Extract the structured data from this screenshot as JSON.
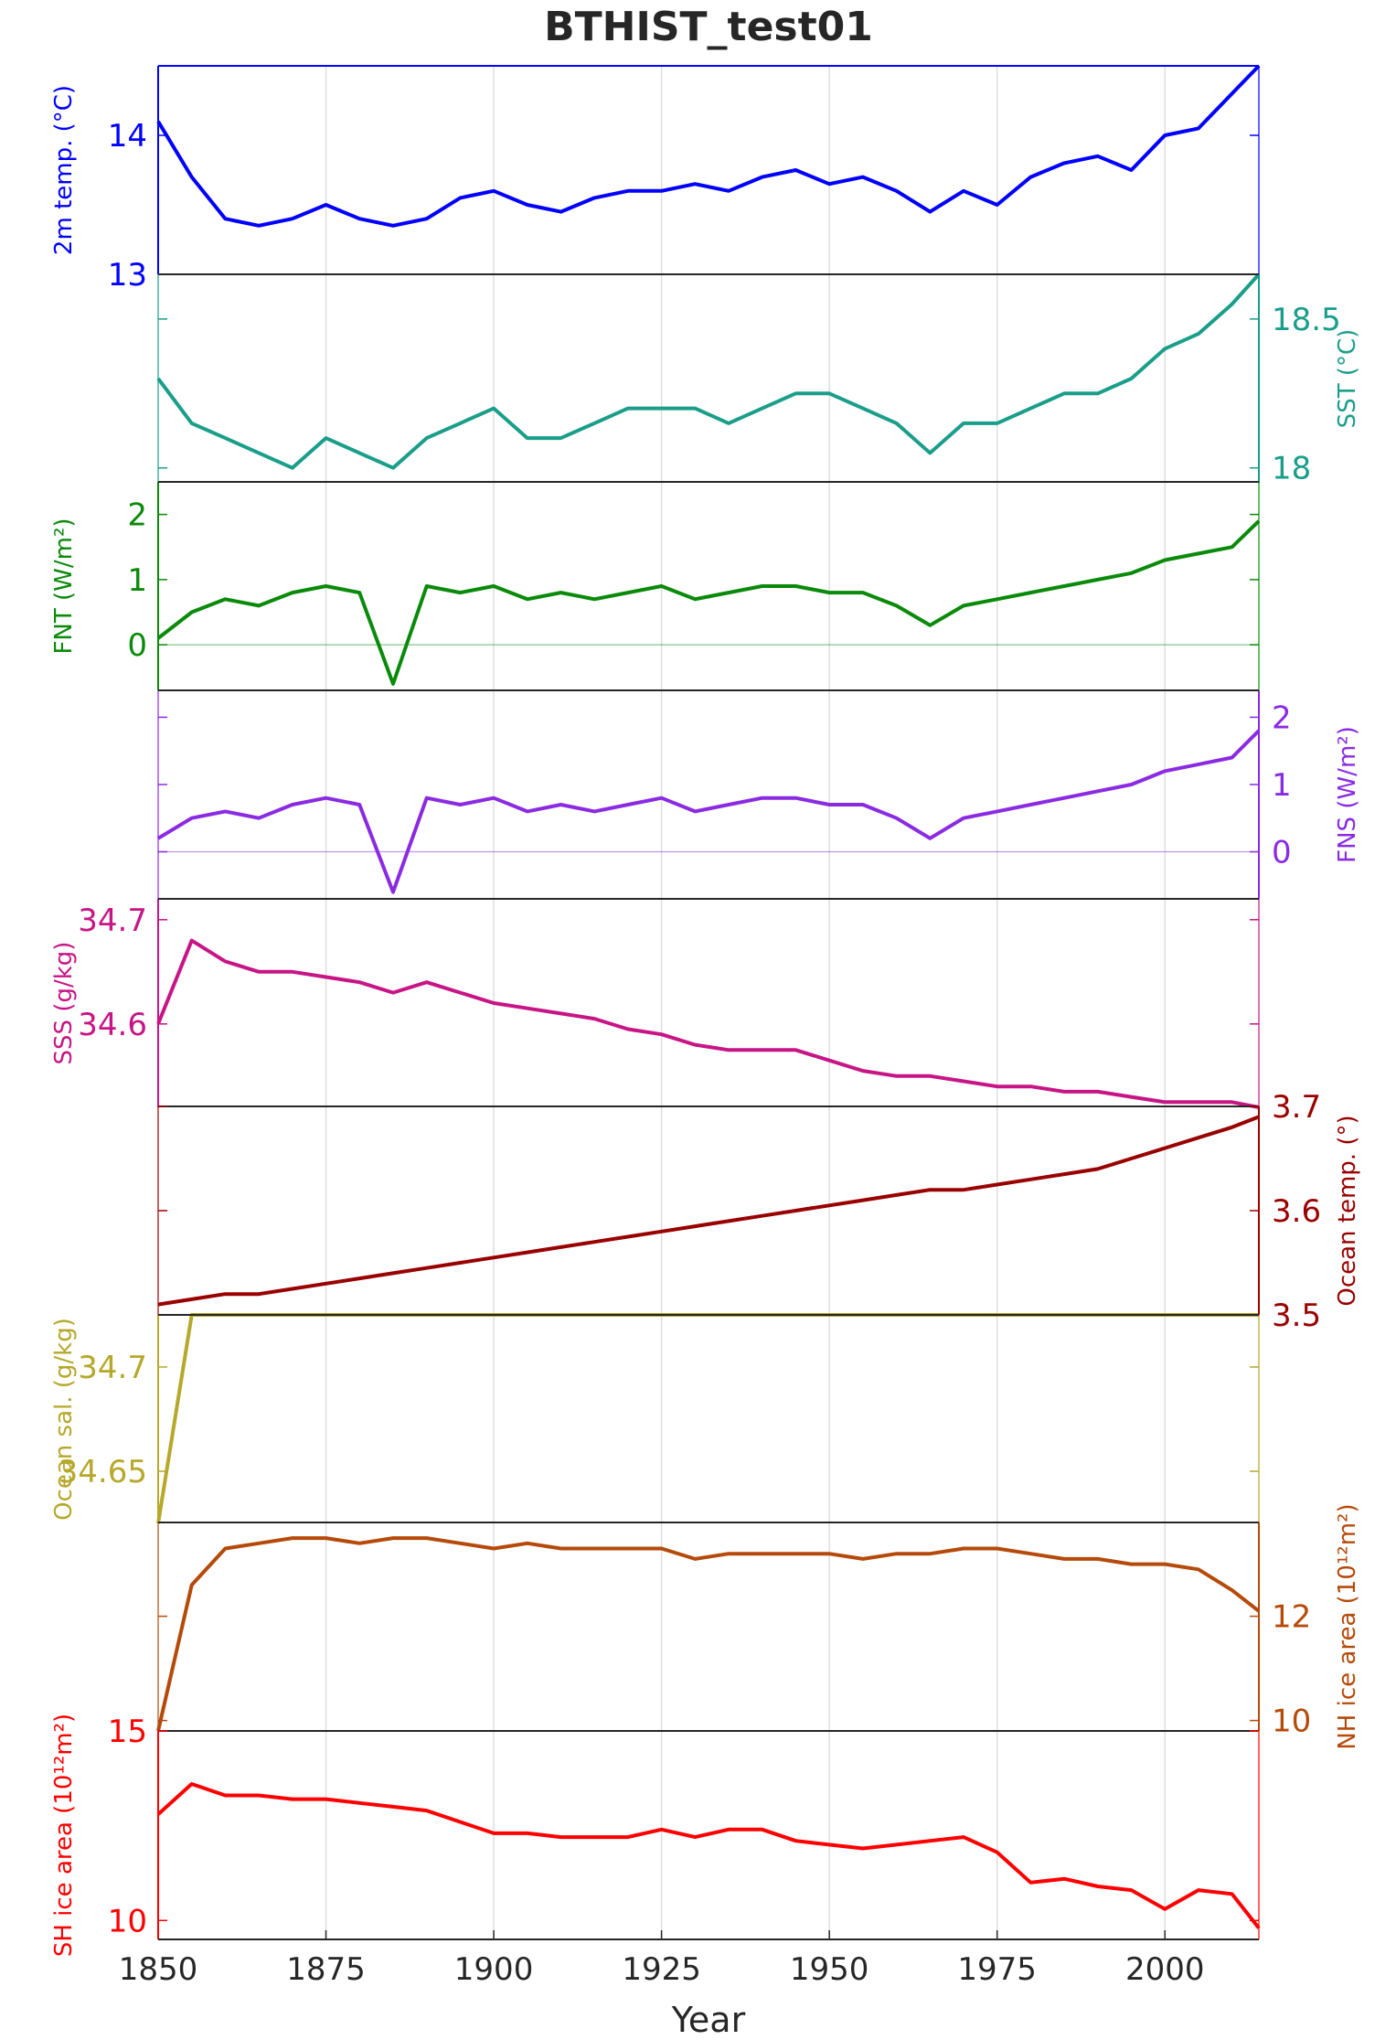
{
  "chart_data": {
    "type": "line",
    "title": "BTHIST_test01",
    "xlabel": "Year",
    "x": [
      1850,
      1855,
      1860,
      1865,
      1870,
      1875,
      1880,
      1885,
      1890,
      1895,
      1900,
      1905,
      1910,
      1915,
      1920,
      1925,
      1930,
      1935,
      1940,
      1945,
      1950,
      1955,
      1960,
      1965,
      1970,
      1975,
      1980,
      1985,
      1990,
      1995,
      2000,
      2005,
      2010,
      2014
    ],
    "xlim": [
      1850,
      2014
    ],
    "xticks": [
      1850,
      1875,
      1900,
      1925,
      1950,
      1975,
      2000
    ],
    "xtick_labels": [
      "1850",
      "1875",
      "1900",
      "1925",
      "1950",
      "1975",
      "2000"
    ],
    "grid": true,
    "panels": [
      {
        "name": "2m temp. (°C)",
        "color": "#0000ff",
        "axis_side": "left",
        "ylim": [
          13.0,
          14.5
        ],
        "yticks": [
          13,
          14
        ],
        "ytick_labels": [
          "13",
          "14"
        ],
        "values": [
          14.1,
          13.7,
          13.4,
          13.35,
          13.4,
          13.5,
          13.4,
          13.35,
          13.4,
          13.55,
          13.6,
          13.5,
          13.45,
          13.55,
          13.6,
          13.6,
          13.65,
          13.6,
          13.7,
          13.75,
          13.65,
          13.7,
          13.6,
          13.45,
          13.6,
          13.5,
          13.7,
          13.8,
          13.85,
          13.75,
          14.0,
          14.05,
          14.3,
          14.5
        ]
      },
      {
        "name": "SST (°C)",
        "color": "#1a9e8a",
        "axis_side": "right",
        "ylim": [
          17.95,
          18.65
        ],
        "yticks": [
          18,
          18.5
        ],
        "ytick_labels": [
          "18",
          "18.5"
        ],
        "values": [
          18.3,
          18.15,
          18.1,
          18.05,
          18.0,
          18.1,
          18.05,
          18.0,
          18.1,
          18.15,
          18.2,
          18.1,
          18.1,
          18.15,
          18.2,
          18.2,
          18.2,
          18.15,
          18.2,
          18.25,
          18.25,
          18.2,
          18.15,
          18.05,
          18.15,
          18.15,
          18.2,
          18.25,
          18.25,
          18.3,
          18.4,
          18.45,
          18.55,
          18.65
        ]
      },
      {
        "name": "FNT (W/m²)",
        "color": "#0a8a0a",
        "axis_side": "left",
        "ylim": [
          -0.7,
          2.5
        ],
        "yticks": [
          0,
          1,
          2
        ],
        "ytick_labels": [
          "0",
          "1",
          "2"
        ],
        "zero_line": true,
        "values": [
          0.1,
          0.5,
          0.7,
          0.6,
          0.8,
          0.9,
          0.8,
          -0.6,
          0.9,
          0.8,
          0.9,
          0.7,
          0.8,
          0.7,
          0.8,
          0.9,
          0.7,
          0.8,
          0.9,
          0.9,
          0.8,
          0.8,
          0.6,
          0.3,
          0.6,
          0.7,
          0.8,
          0.9,
          1.0,
          1.1,
          1.3,
          1.4,
          1.5,
          1.9
        ]
      },
      {
        "name": "FNS (W/m²)",
        "color": "#8a2be2",
        "axis_side": "right",
        "ylim": [
          -0.7,
          2.4
        ],
        "yticks": [
          0,
          1,
          2
        ],
        "ytick_labels": [
          "0",
          "1",
          "2"
        ],
        "zero_line": true,
        "values": [
          0.2,
          0.5,
          0.6,
          0.5,
          0.7,
          0.8,
          0.7,
          -0.6,
          0.8,
          0.7,
          0.8,
          0.6,
          0.7,
          0.6,
          0.7,
          0.8,
          0.6,
          0.7,
          0.8,
          0.8,
          0.7,
          0.7,
          0.5,
          0.2,
          0.5,
          0.6,
          0.7,
          0.8,
          0.9,
          1.0,
          1.2,
          1.3,
          1.4,
          1.8
        ]
      },
      {
        "name": "SSS (g/kg)",
        "color": "#c71585",
        "axis_side": "left",
        "ylim": [
          34.52,
          34.72
        ],
        "yticks": [
          34.6,
          34.7
        ],
        "ytick_labels": [
          "34.6",
          "34.7"
        ],
        "values": [
          34.6,
          34.68,
          34.66,
          34.65,
          34.65,
          34.645,
          34.64,
          34.63,
          34.64,
          34.63,
          34.62,
          34.615,
          34.61,
          34.605,
          34.595,
          34.59,
          34.58,
          34.575,
          34.575,
          34.575,
          34.565,
          34.555,
          34.55,
          34.55,
          34.545,
          34.54,
          34.54,
          34.535,
          34.535,
          34.53,
          34.525,
          34.525,
          34.525,
          34.52
        ]
      },
      {
        "name": "Ocean temp. (°)",
        "color": "#990000",
        "axis_side": "right",
        "ylim": [
          3.5,
          3.7
        ],
        "yticks": [
          3.5,
          3.6,
          3.7
        ],
        "ytick_labels": [
          "3.5",
          "3.6",
          "3.7"
        ],
        "values": [
          3.51,
          3.515,
          3.52,
          3.52,
          3.525,
          3.53,
          3.535,
          3.54,
          3.545,
          3.55,
          3.555,
          3.56,
          3.565,
          3.57,
          3.575,
          3.58,
          3.585,
          3.59,
          3.595,
          3.6,
          3.605,
          3.61,
          3.615,
          3.62,
          3.62,
          3.625,
          3.63,
          3.635,
          3.64,
          3.65,
          3.66,
          3.67,
          3.68,
          3.69
        ]
      },
      {
        "name": "Ocean sal. (g/kg)",
        "color": "#b5a82a",
        "axis_side": "left",
        "ylim": [
          34.625,
          34.725
        ],
        "yticks": [
          34.65,
          34.7
        ],
        "ytick_labels": [
          "34.65",
          "34.7"
        ],
        "values": [
          34.625,
          34.725,
          34.725,
          34.725,
          34.725,
          34.725,
          34.725,
          34.725,
          34.725,
          34.725,
          34.725,
          34.725,
          34.725,
          34.725,
          34.725,
          34.725,
          34.725,
          34.725,
          34.725,
          34.725,
          34.725,
          34.725,
          34.725,
          34.725,
          34.725,
          34.725,
          34.725,
          34.725,
          34.725,
          34.725,
          34.725,
          34.725,
          34.725,
          34.725
        ]
      },
      {
        "name": "NH ice area (10¹²m²)",
        "color": "#b54a0a",
        "axis_side": "right",
        "ylim": [
          9.8,
          13.8
        ],
        "yticks": [
          10,
          12
        ],
        "ytick_labels": [
          "10",
          "12"
        ],
        "values": [
          9.8,
          12.6,
          13.3,
          13.4,
          13.5,
          13.5,
          13.4,
          13.5,
          13.5,
          13.4,
          13.3,
          13.4,
          13.3,
          13.3,
          13.3,
          13.3,
          13.1,
          13.2,
          13.2,
          13.2,
          13.2,
          13.1,
          13.2,
          13.2,
          13.3,
          13.3,
          13.2,
          13.1,
          13.1,
          13.0,
          13.0,
          12.9,
          12.5,
          12.1
        ]
      },
      {
        "name": "SH ice area (10¹²m²)",
        "color": "#ff0000",
        "axis_side": "left",
        "ylim": [
          9.5,
          15.0
        ],
        "yticks": [
          10,
          15
        ],
        "ytick_labels": [
          "10",
          "15"
        ],
        "values": [
          12.8,
          13.6,
          13.3,
          13.3,
          13.2,
          13.2,
          13.1,
          13.0,
          12.9,
          12.6,
          12.3,
          12.3,
          12.2,
          12.2,
          12.2,
          12.4,
          12.2,
          12.4,
          12.4,
          12.1,
          12.0,
          11.9,
          12.0,
          12.1,
          12.2,
          11.8,
          11.0,
          11.1,
          10.9,
          10.8,
          10.3,
          10.8,
          10.7,
          9.8
        ]
      }
    ]
  }
}
